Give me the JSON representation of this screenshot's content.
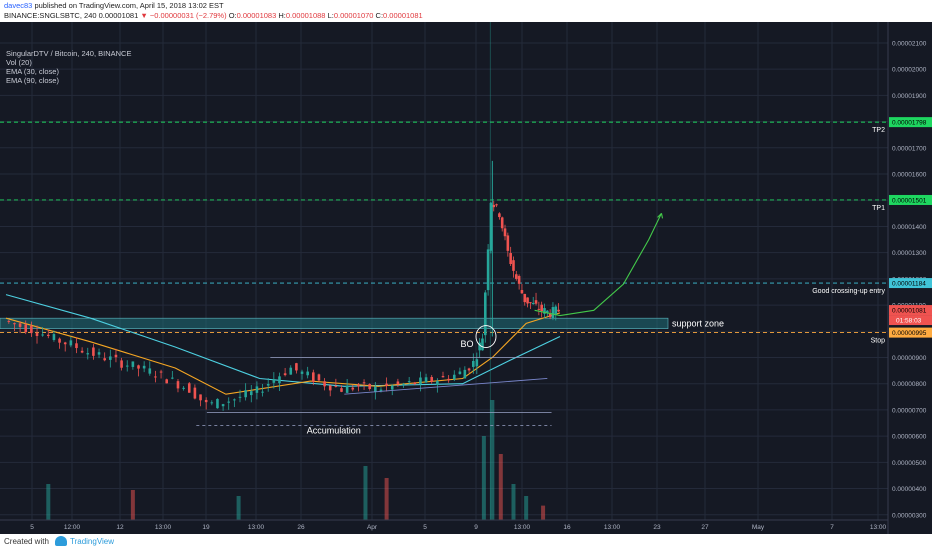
{
  "header": {
    "user": "davec83",
    "published": "published on TradingView.com, April 15, 2018 13:02 EST",
    "symbol": "BINANCE:SNGLSBTC, 240",
    "last": "0.00001081",
    "change": "−0.00000031 (−2.79%)",
    "o_label": "O:",
    "o_value": "0.00001083",
    "h_label": "H:",
    "h_value": "0.00001088",
    "l_label": "L:",
    "l_value": "0.00001070",
    "c_label": "C:",
    "c_value": "0.00001081"
  },
  "legend": {
    "title": "SingularDTV / Bitcoin, 240, BINANCE",
    "vol": "Vol (20)",
    "ema30": "EMA (30, close)",
    "ema90": "EMA (90, close)"
  },
  "footer": {
    "created": "Created with",
    "brand": "TradingView"
  },
  "colors": {
    "background": "#151924",
    "grid": "#242a3a",
    "up": "#26a69a",
    "down": "#ef5350",
    "ema30": "#f5a623",
    "ema90": "#4dd0e1",
    "level_green": "#1ed760",
    "level_cyan": "#40c4d8",
    "level_orange": "#ffab40",
    "zone": "#1f6f78"
  },
  "chart_data": {
    "type": "candlestick",
    "y_axis_ticks": [
      "0.00002100",
      "0.00002000",
      "0.00001900",
      "0.00001800",
      "0.00001700",
      "0.00001600",
      "0.00001500",
      "0.00001400",
      "0.00001300",
      "0.00001200",
      "0.00001100",
      "0.00001000",
      "0.00000900",
      "0.00000800",
      "0.00000700",
      "0.00000600",
      "0.00000500",
      "0.00000400",
      "0.00000300"
    ],
    "ylim": [
      2.8e-06,
      2.18e-05
    ],
    "x_axis_ticks": [
      "5",
      "12:00",
      "12",
      "13:00",
      "19",
      "13:00",
      "26",
      "Apr",
      "5",
      "9",
      "13:00",
      "16",
      "13:00",
      "23",
      "27",
      "May",
      "7",
      "13:00"
    ],
    "price_labels": [
      {
        "value": 1.798e-05,
        "text": "0.00001798",
        "color": "#1ed760"
      },
      {
        "value": 1.501e-05,
        "text": "0.00001501",
        "color": "#1ed760"
      },
      {
        "value": 1.184e-05,
        "text": "0.00001184",
        "color": "#40c4d8"
      },
      {
        "value": 1.081e-05,
        "text": "0.00001081",
        "color": "#ef5350"
      },
      {
        "value": 9.95e-06,
        "text": "0.00000995",
        "color": "#ffab40"
      }
    ],
    "countdown": "01:58:03",
    "levels": [
      {
        "value": 1.798e-05,
        "label": "TP2",
        "color": "#1ed760"
      },
      {
        "value": 1.501e-05,
        "label": "TP1",
        "color": "#1ed760"
      },
      {
        "value": 1.184e-05,
        "label": "Good crossing-up entry",
        "color": "#40c4d8"
      },
      {
        "value": 9.95e-06,
        "label": "Stop",
        "color": "#ffab40"
      }
    ],
    "annotations": {
      "support_zone": "support zone",
      "breakout": "BO",
      "accumulation": "Accumulation"
    },
    "support_zone": {
      "from": 1.01e-05,
      "to": 1.05e-05
    },
    "price_path": [
      {
        "x": 0,
        "y": 1.04e-05
      },
      {
        "x": 8,
        "y": 1.02e-05
      },
      {
        "x": 16,
        "y": 1e-05
      },
      {
        "x": 24,
        "y": 9.7e-06
      },
      {
        "x": 32,
        "y": 9.5e-06
      },
      {
        "x": 40,
        "y": 9.2e-06
      },
      {
        "x": 48,
        "y": 9e-06
      },
      {
        "x": 56,
        "y": 8.8e-06
      },
      {
        "x": 64,
        "y": 8.6e-06
      },
      {
        "x": 72,
        "y": 8.4e-06
      },
      {
        "x": 80,
        "y": 8.1e-06
      },
      {
        "x": 88,
        "y": 7.8e-06
      },
      {
        "x": 96,
        "y": 7.2e-06
      },
      {
        "x": 104,
        "y": 7.3e-06
      },
      {
        "x": 112,
        "y": 7.5e-06
      },
      {
        "x": 120,
        "y": 7.7e-06
      },
      {
        "x": 128,
        "y": 8.2e-06
      },
      {
        "x": 136,
        "y": 8.6e-06
      },
      {
        "x": 144,
        "y": 8.3e-06
      },
      {
        "x": 152,
        "y": 8e-06
      },
      {
        "x": 160,
        "y": 7.8e-06
      },
      {
        "x": 168,
        "y": 7.9e-06
      },
      {
        "x": 176,
        "y": 7.8e-06
      },
      {
        "x": 184,
        "y": 7.9e-06
      },
      {
        "x": 192,
        "y": 8e-06
      },
      {
        "x": 200,
        "y": 8.1e-06
      },
      {
        "x": 208,
        "y": 8.2e-06
      },
      {
        "x": 216,
        "y": 8.4e-06
      },
      {
        "x": 222,
        "y": 8.8e-06
      },
      {
        "x": 226,
        "y": 9.8e-06
      },
      {
        "x": 230,
        "y": 1.5e-05
      },
      {
        "x": 234,
        "y": 1.45e-05
      },
      {
        "x": 238,
        "y": 1.3e-05
      },
      {
        "x": 242,
        "y": 1.2e-05
      },
      {
        "x": 246,
        "y": 1.12e-05
      },
      {
        "x": 250,
        "y": 1.1e-05
      },
      {
        "x": 254,
        "y": 1.08e-05
      },
      {
        "x": 258,
        "y": 1.07e-05
      },
      {
        "x": 262,
        "y": 1.08e-05
      }
    ],
    "ema30_path": [
      {
        "x": 0,
        "y": 1.05e-05
      },
      {
        "x": 40,
        "y": 9.6e-06
      },
      {
        "x": 80,
        "y": 8.6e-06
      },
      {
        "x": 104,
        "y": 7.6e-06
      },
      {
        "x": 144,
        "y": 8.1e-06
      },
      {
        "x": 176,
        "y": 7.9e-06
      },
      {
        "x": 216,
        "y": 8.2e-06
      },
      {
        "x": 230,
        "y": 9e-06
      },
      {
        "x": 246,
        "y": 1.03e-05
      },
      {
        "x": 262,
        "y": 1.07e-05
      }
    ],
    "ema90_path": [
      {
        "x": 0,
        "y": 1.14e-05
      },
      {
        "x": 40,
        "y": 1.05e-05
      },
      {
        "x": 80,
        "y": 9.4e-06
      },
      {
        "x": 120,
        "y": 8.2e-06
      },
      {
        "x": 160,
        "y": 7.9e-06
      },
      {
        "x": 216,
        "y": 8e-06
      },
      {
        "x": 236,
        "y": 8.8e-06
      },
      {
        "x": 262,
        "y": 9.8e-06
      }
    ],
    "projection_path": [
      {
        "x": 250,
        "y": 1.08e-05
      },
      {
        "x": 262,
        "y": 1.06e-05
      },
      {
        "x": 278,
        "y": 1.08e-05
      },
      {
        "x": 292,
        "y": 1.18e-05
      },
      {
        "x": 304,
        "y": 1.35e-05
      },
      {
        "x": 310,
        "y": 1.45e-05
      }
    ],
    "volume": [
      {
        "x": 20,
        "v": 0.3
      },
      {
        "x": 60,
        "v": 0.25
      },
      {
        "x": 110,
        "v": 0.2
      },
      {
        "x": 170,
        "v": 0.45
      },
      {
        "x": 180,
        "v": 0.35
      },
      {
        "x": 226,
        "v": 0.7
      },
      {
        "x": 230,
        "v": 1.0
      },
      {
        "x": 234,
        "v": 0.55
      },
      {
        "x": 240,
        "v": 0.3
      },
      {
        "x": 246,
        "v": 0.2
      },
      {
        "x": 254,
        "v": 0.12
      }
    ]
  }
}
